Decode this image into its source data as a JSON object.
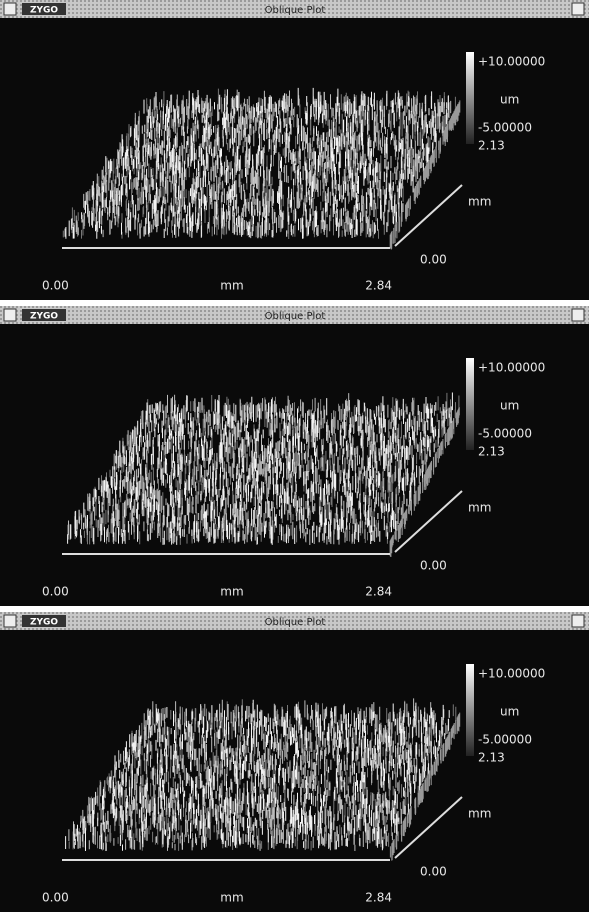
{
  "windows": [
    {
      "logo": "ZYGO",
      "title": "Oblique Plot",
      "scale_max": "+10.00000",
      "scale_unit": "um",
      "scale_min": "-5.00000",
      "y_max": "2.13",
      "y_unit": "mm",
      "y_min": "0.00",
      "x_min": "0.00",
      "x_unit": "mm",
      "x_max": "2.84"
    },
    {
      "logo": "ZYGO",
      "title": "Oblique Plot",
      "scale_max": "+10.00000",
      "scale_unit": "um",
      "scale_min": "-5.00000",
      "y_max": "2.13",
      "y_unit": "mm",
      "y_min": "0.00",
      "x_min": "0.00",
      "x_unit": "mm",
      "x_max": "2.84"
    },
    {
      "logo": "ZYGO",
      "title": "Oblique Plot",
      "scale_max": "+10.00000",
      "scale_unit": "um",
      "scale_min": "-5.00000",
      "y_max": "2.13",
      "y_unit": "mm",
      "y_min": "0.00",
      "x_min": "0.00",
      "x_unit": "mm",
      "x_max": "2.84"
    }
  ]
}
